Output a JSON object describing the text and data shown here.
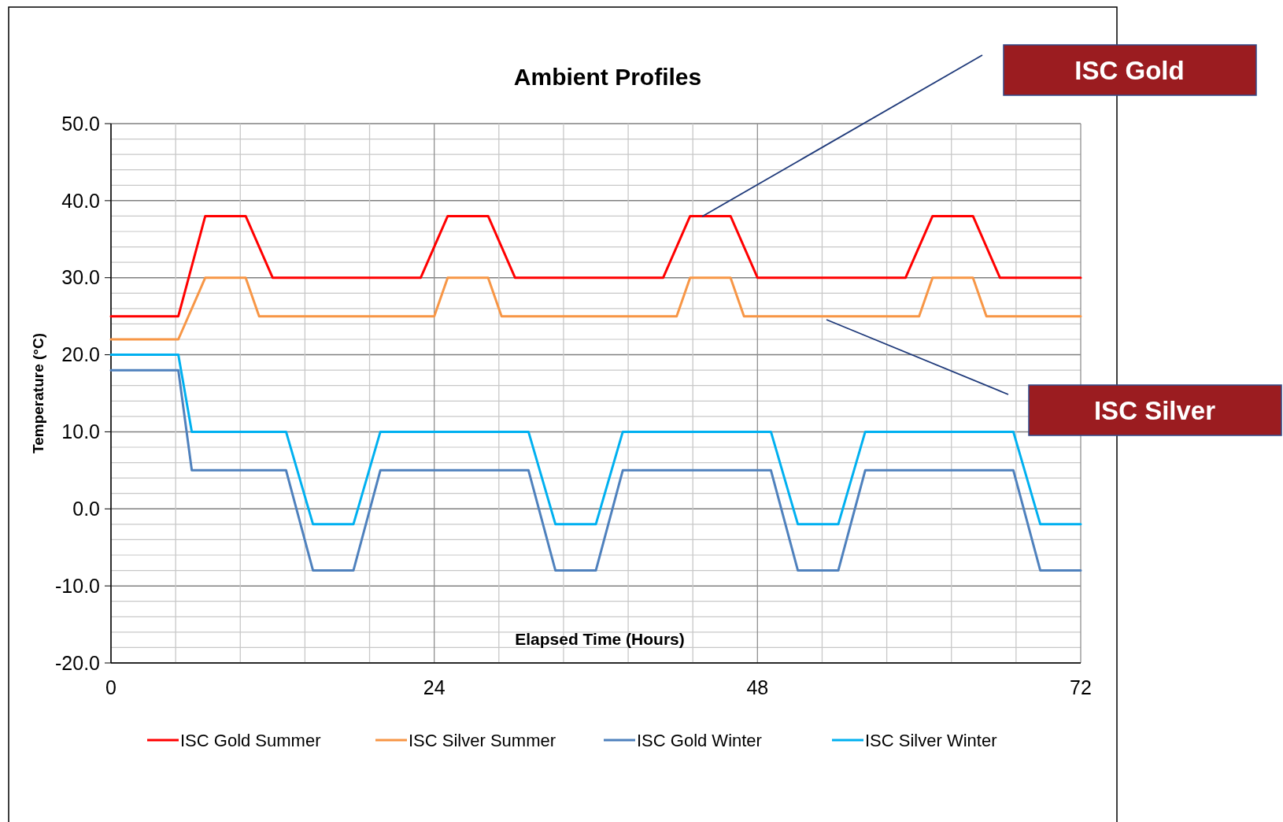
{
  "chart_data": {
    "type": "line",
    "title": "Ambient Profiles",
    "xlabel": "Elapsed Time (Hours)",
    "ylabel": "Temperature (°C)",
    "xlim": [
      0,
      72
    ],
    "xticks": [
      0,
      {
        "value": 4.8,
        "label": null
      },
      {
        "value": 9.6,
        "label": null
      },
      {
        "value": 14.4,
        "label": null
      },
      {
        "value": 19.2,
        "label": null
      },
      24,
      {
        "value": 28.8,
        "label": null
      },
      {
        "value": 33.6,
        "label": null
      },
      {
        "value": 38.4,
        "label": null
      },
      {
        "value": 43.2,
        "label": null
      },
      48,
      {
        "value": 52.8,
        "label": null
      },
      {
        "value": 57.6,
        "label": null
      },
      {
        "value": 62.4,
        "label": null
      },
      {
        "value": 67.2,
        "label": null
      },
      72
    ],
    "ylim": [
      -20,
      50
    ],
    "yticks": [
      {
        "value": -20,
        "label": "-20.0"
      },
      {
        "value": -18,
        "label": null
      },
      {
        "value": -16,
        "label": null
      },
      {
        "value": -14,
        "label": null
      },
      {
        "value": -12,
        "label": null
      },
      {
        "value": -10,
        "label": "-10.0"
      },
      {
        "value": -8,
        "label": null
      },
      {
        "value": -6,
        "label": null
      },
      {
        "value": -4,
        "label": null
      },
      {
        "value": -2,
        "label": null
      },
      {
        "value": 0,
        "label": "0.0"
      },
      {
        "value": 2,
        "label": null
      },
      {
        "value": 4,
        "label": null
      },
      {
        "value": 6,
        "label": null
      },
      {
        "value": 8,
        "label": null
      },
      {
        "value": 10,
        "label": "10.0"
      },
      {
        "value": 12,
        "label": null
      },
      {
        "value": 14,
        "label": null
      },
      {
        "value": 16,
        "label": null
      },
      {
        "value": 18,
        "label": null
      },
      {
        "value": 20,
        "label": "20.0"
      },
      {
        "value": 22,
        "label": null
      },
      {
        "value": 24,
        "label": null
      },
      {
        "value": 26,
        "label": null
      },
      {
        "value": 28,
        "label": null
      },
      {
        "value": 30,
        "label": "30.0"
      },
      {
        "value": 32,
        "label": null
      },
      {
        "value": 34,
        "label": null
      },
      {
        "value": 36,
        "label": null
      },
      {
        "value": 38,
        "label": null
      },
      {
        "value": 40,
        "label": "40.0"
      },
      {
        "value": 42,
        "label": null
      },
      {
        "value": 44,
        "label": null
      },
      {
        "value": 46,
        "label": null
      },
      {
        "value": 48,
        "label": null
      },
      {
        "value": 50,
        "label": "50.0"
      }
    ],
    "grid": true,
    "legend": "bottom",
    "marker": "none",
    "line_style": "solid",
    "series": [
      {
        "name": "ISC Gold Summer",
        "color": "#ff0000",
        "x": [
          0,
          5,
          7,
          10,
          12,
          23,
          25,
          28,
          30,
          41,
          43,
          46,
          48,
          59,
          61,
          64,
          66,
          72
        ],
        "values": [
          25,
          25,
          38,
          38,
          30,
          30,
          38,
          38,
          30,
          30,
          38,
          38,
          30,
          30,
          38,
          38,
          30,
          30
        ]
      },
      {
        "name": "ISC Silver Summer",
        "color": "#f79646",
        "x": [
          0,
          5,
          7,
          10,
          11,
          24,
          25,
          28,
          29,
          42,
          43,
          46,
          47,
          60,
          61,
          64,
          65,
          72
        ],
        "values": [
          22,
          22,
          30,
          30,
          25,
          25,
          30,
          30,
          25,
          25,
          30,
          30,
          25,
          25,
          30,
          30,
          25,
          25
        ]
      },
      {
        "name": "ISC Gold Winter",
        "color": "#4f81bd",
        "x": [
          0,
          5,
          6,
          13,
          15,
          18,
          20,
          31,
          33,
          36,
          38,
          49,
          51,
          54,
          56,
          67,
          69,
          72
        ],
        "values": [
          18,
          18,
          5,
          5,
          -8,
          -8,
          5,
          5,
          -8,
          -8,
          5,
          5,
          -8,
          -8,
          5,
          5,
          -8,
          -8
        ]
      },
      {
        "name": "ISC Silver Winter",
        "color": "#00b0f0",
        "x": [
          0,
          5,
          6,
          13,
          15,
          18,
          20,
          31,
          33,
          36,
          38,
          49,
          51,
          54,
          56,
          67,
          69,
          72
        ],
        "values": [
          20,
          20,
          10,
          10,
          -2,
          -2,
          10,
          10,
          -2,
          -2,
          10,
          10,
          -2,
          -2,
          10,
          10,
          -2,
          -2
        ]
      }
    ],
    "annotations": [
      "ISC Gold",
      "ISC Silver"
    ]
  }
}
